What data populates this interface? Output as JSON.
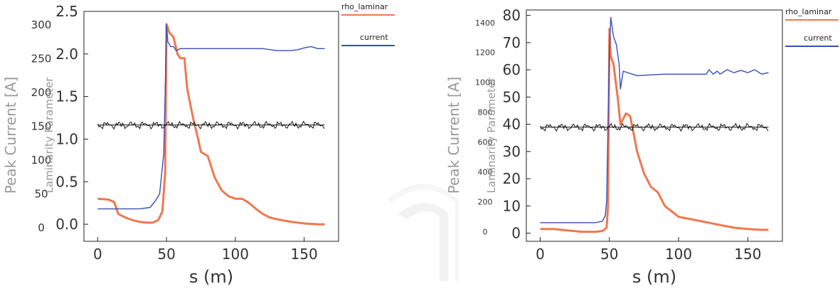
{
  "chart_data": [
    {
      "type": "line",
      "title": "",
      "xlabel": "s (m)",
      "ylabel_outer": "Peak Current [A]",
      "ylabel_inner": "Laminarity Parameter",
      "xlim": [
        -10,
        175
      ],
      "x_ticks": [
        "0",
        "50",
        "100",
        "150"
      ],
      "y_outer": {
        "lim": [
          -20,
          320
        ],
        "ticks": [
          "0",
          "50",
          "100",
          "150",
          "200",
          "250",
          "300"
        ]
      },
      "y_inner": {
        "lim": [
          -0.2,
          2.5
        ],
        "ticks": [
          "0.0",
          "0.5",
          "1.0",
          "1.5",
          "2.0",
          "2.5"
        ]
      },
      "legend": "top-right",
      "grid": false,
      "series": [
        {
          "name": "rho_laminar",
          "color": "#f07850",
          "axis": "inner",
          "x": [
            0,
            8,
            12,
            15,
            20,
            25,
            30,
            35,
            40,
            44,
            47,
            49,
            50,
            52,
            55,
            58,
            60,
            63,
            65,
            68,
            70,
            73,
            75,
            80,
            85,
            90,
            95,
            100,
            105,
            110,
            115,
            120,
            125,
            130,
            140,
            150,
            160,
            165
          ],
          "y": [
            0.3,
            0.29,
            0.26,
            0.12,
            0.08,
            0.05,
            0.03,
            0.02,
            0.02,
            0.05,
            0.15,
            0.6,
            2.35,
            2.25,
            2.2,
            2.0,
            1.95,
            1.95,
            1.6,
            1.35,
            1.2,
            1.0,
            0.85,
            0.8,
            0.55,
            0.4,
            0.33,
            0.3,
            0.3,
            0.25,
            0.18,
            0.12,
            0.08,
            0.06,
            0.03,
            0.01,
            0.0,
            0.0
          ]
        },
        {
          "name": "current",
          "color": "#3a4fb8",
          "axis": "outer",
          "x": [
            0,
            10,
            20,
            30,
            38,
            42,
            45,
            47,
            48,
            49,
            50,
            51,
            53,
            55,
            57,
            60,
            80,
            100,
            110,
            120,
            130,
            140,
            145,
            150,
            155,
            160,
            165
          ],
          "y": [
            28,
            28,
            28,
            28,
            30,
            40,
            50,
            90,
            110,
            200,
            300,
            275,
            268,
            268,
            262,
            265,
            265,
            265,
            265,
            265,
            262,
            262,
            263,
            266,
            268,
            265,
            265
          ]
        },
        {
          "name": "",
          "color": "#111111",
          "axis": "outer",
          "style": "jitter",
          "x": [
            0,
            165
          ],
          "y": [
            152,
            152
          ]
        }
      ]
    },
    {
      "type": "line",
      "title": "",
      "xlabel": "s (m)",
      "ylabel_outer": "Peak Current [A]",
      "ylabel_inner": "Laminarity Parameter",
      "xlim": [
        -10,
        175
      ],
      "x_ticks": [
        "0",
        "50",
        "100",
        "150"
      ],
      "y_outer": {
        "lim": [
          -70,
          1480
        ],
        "ticks": [
          "0",
          "200",
          "400",
          "600",
          "800",
          "1000",
          "1200",
          "1400"
        ]
      },
      "y_inner": {
        "lim": [
          -3,
          82
        ],
        "ticks": [
          "0",
          "10",
          "20",
          "30",
          "40",
          "50",
          "60",
          "70",
          "80"
        ]
      },
      "legend": "top-right",
      "grid": false,
      "series": [
        {
          "name": "rho_laminar",
          "color": "#f07850",
          "axis": "inner",
          "x": [
            0,
            10,
            20,
            30,
            40,
            45,
            48,
            49,
            50,
            51,
            53,
            56,
            58,
            60,
            62,
            65,
            67,
            70,
            75,
            80,
            85,
            90,
            95,
            100,
            110,
            120,
            130,
            140,
            150,
            160,
            165
          ],
          "y": [
            1.5,
            1.5,
            1.0,
            0.5,
            0.5,
            0.8,
            2,
            10,
            75,
            65,
            62,
            50,
            40,
            42,
            44,
            43,
            38,
            30,
            22,
            17,
            15,
            10,
            8,
            6,
            5,
            4,
            3,
            2,
            1.5,
            1.2,
            1.2
          ]
        },
        {
          "name": "current",
          "color": "#3a4fb8",
          "axis": "outer",
          "x": [
            0,
            10,
            20,
            30,
            40,
            45,
            47,
            48,
            49,
            50,
            51,
            53,
            55,
            57,
            58,
            60,
            70,
            80,
            90,
            100,
            110,
            120,
            122,
            125,
            128,
            130,
            135,
            140,
            145,
            150,
            155,
            160,
            165
          ],
          "y": [
            55,
            55,
            55,
            55,
            55,
            65,
            100,
            200,
            700,
            1200,
            1430,
            1300,
            1250,
            1120,
            950,
            1070,
            1040,
            1045,
            1050,
            1050,
            1050,
            1050,
            1080,
            1050,
            1070,
            1050,
            1080,
            1060,
            1075,
            1060,
            1080,
            1050,
            1060
          ]
        },
        {
          "name": "",
          "color": "#111111",
          "axis": "outer",
          "style": "jitter",
          "x": [
            0,
            165
          ],
          "y": [
            695,
            695
          ]
        }
      ]
    }
  ]
}
